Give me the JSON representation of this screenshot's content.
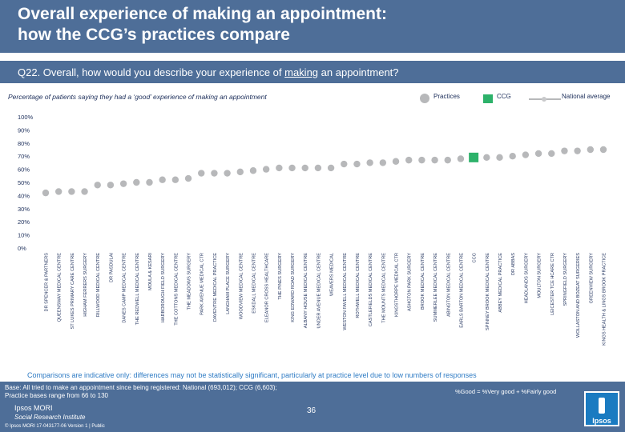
{
  "header": {
    "title_line1": "Overall experience of making an appointment:",
    "title_line2": "how the CCG’s practices compare"
  },
  "question": {
    "prefix": "Q22. Overall, how would you describe your experience of ",
    "underlined": "making",
    "suffix": " an appointment?"
  },
  "subtitle": "Percentage of patients saying they had a ‘good’ experience of making an appointment",
  "legend": {
    "practices": "Practices",
    "ccg": "CCG",
    "national": "National average"
  },
  "colors": {
    "header_bg": "#4e6e98",
    "practice_marker": "#b7b8ba",
    "ccg_marker": "#2db26a",
    "national_line": "#b7b8ba",
    "title_text": "#ffffff",
    "label_text": "#1c2e5a",
    "note_text": "#2e7bc4"
  },
  "chart_data": {
    "type": "scatter",
    "title": "",
    "xlabel": "",
    "ylabel": "",
    "ylim": [
      0,
      100
    ],
    "y_ticks": [
      "0%",
      "10%",
      "20%",
      "30%",
      "40%",
      "50%",
      "60%",
      "70%",
      "80%",
      "90%",
      "100%"
    ],
    "categories": [
      "DR SPENCER & PARTNERS",
      "QUEENSWAY MEDICAL CENTRE",
      "ST LUKES PRIMARY CARE CENTRE",
      "HIGHAM FERRERS SURGERY",
      "RILLWOOD MEDICAL CENTRE",
      "DR PASDULAI",
      "DANES CAMP MEDICAL CENTRE",
      "THE REDWELL MEDICAL CENTRE",
      "MOULA & KESARI",
      "HARBOROUGH FIELD SURGERY",
      "THE COTTONS MEDICAL CENTRE",
      "THE MEADOWS SURGERY",
      "PARK AVENUE MEDICAL CTR",
      "DAVENTRE MEDICAL PRACTICE",
      "LANGHAM PLACE SURGERY",
      "WOODVIEW MEDICAL CENTRE",
      "ESKDALL MEDICAL CENTRE",
      "ELEANOR CROSS HEALTHCARE",
      "THE PINES SURGERY",
      "KING EDWARD ROAD SURGERY",
      "ALBANY HOUSE MEDICAL CENTRE",
      "UNDER AVENUE MEDICAL CENTRE",
      "WEAVERS MEDICAL",
      "WESTON FAVELL MEDICAL CENTRE",
      "ROTHWELL MEDICAL CENTRE",
      "CASTLEFIELDS MEDICAL CENTRE",
      "THE MOUNTS MEDICAL CENTRE",
      "KINGSTHORPE MEDICAL CTR",
      "ASHGTON PARK SURGERY",
      "BROOK MEDICAL CENTRE",
      "SUMMERLEE MEDICAL CENTRE",
      "ABINGTON MEDICAL CENTRE",
      "EARLS BARTON MEDICAL CENTRE",
      "CCG",
      "SPINNEY BROOK MEDICAL CENTRE",
      "ABBEY MEDICAL PRACTICE",
      "DR ABBAS",
      "HEADLANDS SURGERY",
      "MOULTON SURGERY",
      "LEICESTER TCE HCARE CTR",
      "SPRINGFIELD SURGERY",
      "WOLLASTON AND BOZEAT SURGERIES",
      "GREENVIEW SURGERY",
      "KINGS HEALTH & LINGS BROOK PRACTICE"
    ],
    "series": [
      {
        "name": "Practices",
        "values": [
          42,
          43,
          43,
          43,
          48,
          48,
          49,
          50,
          50,
          52,
          52,
          53,
          57,
          57,
          57,
          58,
          59,
          60,
          61,
          61,
          61,
          61,
          61,
          64,
          64,
          65,
          65,
          66,
          67,
          67,
          67,
          67,
          68,
          null,
          69,
          69,
          70,
          71,
          72,
          72,
          74,
          74,
          75,
          75
        ]
      },
      {
        "name": "CCG",
        "values": [
          null,
          null,
          null,
          null,
          null,
          null,
          null,
          null,
          null,
          null,
          null,
          null,
          null,
          null,
          null,
          null,
          null,
          null,
          null,
          null,
          null,
          null,
          null,
          null,
          null,
          null,
          null,
          null,
          null,
          null,
          null,
          null,
          null,
          69,
          null,
          null,
          null,
          null,
          null,
          null,
          null,
          null,
          null,
          null
        ]
      },
      {
        "name": "National average",
        "values": [
          null,
          null,
          null,
          null,
          null,
          null,
          null,
          null,
          null,
          null,
          null,
          null,
          null,
          null,
          null,
          null,
          null,
          null,
          null,
          null,
          null,
          null,
          null,
          null,
          null,
          null,
          null,
          null,
          null,
          null,
          null,
          null,
          null,
          null,
          null,
          null,
          null,
          null,
          null,
          null,
          null,
          null,
          null,
          null
        ]
      }
    ],
    "grid": false,
    "legend_position": "top-right"
  },
  "note": "Comparisons are indicative only: differences may not be statistically significant, particularly at practice level due to low numbers of responses",
  "footer": {
    "base_line1": "Base: All tried to make an appointment since being registered: National (693,012); CCG (6,603);",
    "base_line2": "Practice bases range from 66 to 130",
    "definition": "%Good = %Very good + %Fairly good",
    "page_number": "36",
    "brand_name": "Ipsos MORI",
    "brand_sub": "Social Research Institute",
    "copyright": "© Ipsos MORI      17-043177-06 Version 1 | Public",
    "logo_text": "Ipsos"
  }
}
